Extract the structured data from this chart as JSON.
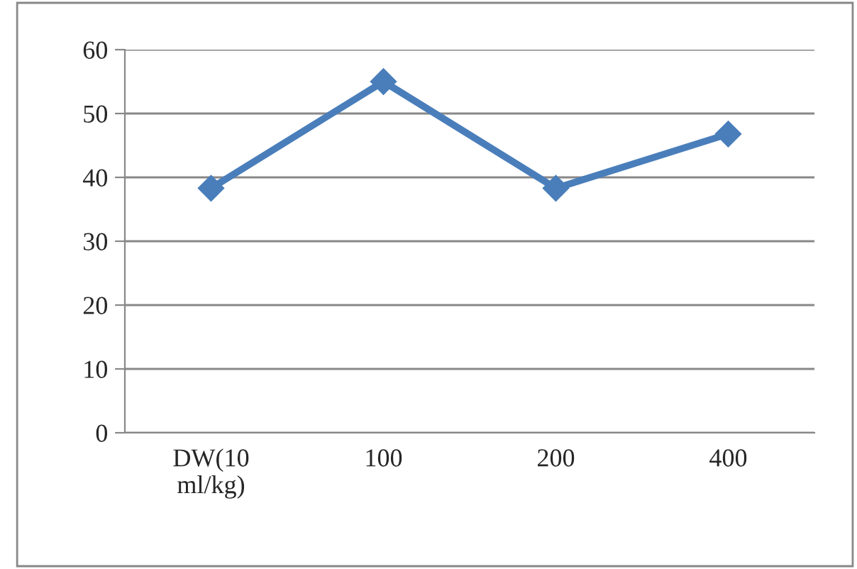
{
  "chart_data": {
    "type": "line",
    "categories": [
      "DW(10\nml/kg)",
      "100",
      "200",
      "400"
    ],
    "series": [
      {
        "color": "#4a7ebb",
        "values": [
          38.3,
          55,
          38.3,
          46.8
        ]
      }
    ],
    "ylim": [
      0,
      60
    ],
    "yticks": [
      0,
      10,
      20,
      30,
      40,
      50,
      60
    ],
    "grid": "y",
    "marker": "diamond",
    "line_style": "solid",
    "legend": false
  }
}
